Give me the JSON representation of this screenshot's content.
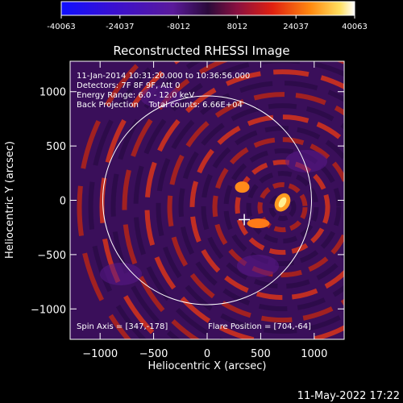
{
  "chart_data": {
    "type": "heatmap",
    "title": "Reconstructed RHESSI Image",
    "xlabel": "Heliocentric X (arcsec)",
    "ylabel": "Heliocentric Y (arcsec)",
    "xlim": [
      -1280,
      1280
    ],
    "ylim": [
      -1280,
      1280
    ],
    "xticks": [
      -1000,
      -500,
      0,
      500,
      1000
    ],
    "yticks": [
      1000,
      500,
      0,
      -500,
      -1000
    ],
    "xtick_labels": [
      "−1000",
      "−500",
      "0",
      "500",
      "1000"
    ],
    "ytick_labels": [
      "1000",
      "500",
      "0",
      "−500",
      "−1000"
    ],
    "colorbar": {
      "min": -40063,
      "max": 40063,
      "tick_values": [
        -40063,
        -24037,
        -8012,
        8012,
        24037,
        40063
      ],
      "tick_labels": [
        "-40063",
        "-24037",
        "-8012",
        "8012",
        "24037",
        "40063"
      ]
    },
    "annotations": [
      "11-Jan-2014 10:31:20.000 to 10:36:56.000",
      "Detectors: 7F 8F 9F, Att 0",
      "Energy Range: 6.0 - 12.0 keV",
      "Back Projection    Total counts: 6.66E+04"
    ],
    "spin_axis_label": "Spin Axis = [347,-178]",
    "flare_position_label": "Flare Position = [704,-64]",
    "spin_axis": [
      347,
      -178
    ],
    "flare_position": [
      704,
      -64
    ],
    "solar_limb_radius": 975,
    "footer_timestamp": "11-May-2022 17:22"
  }
}
